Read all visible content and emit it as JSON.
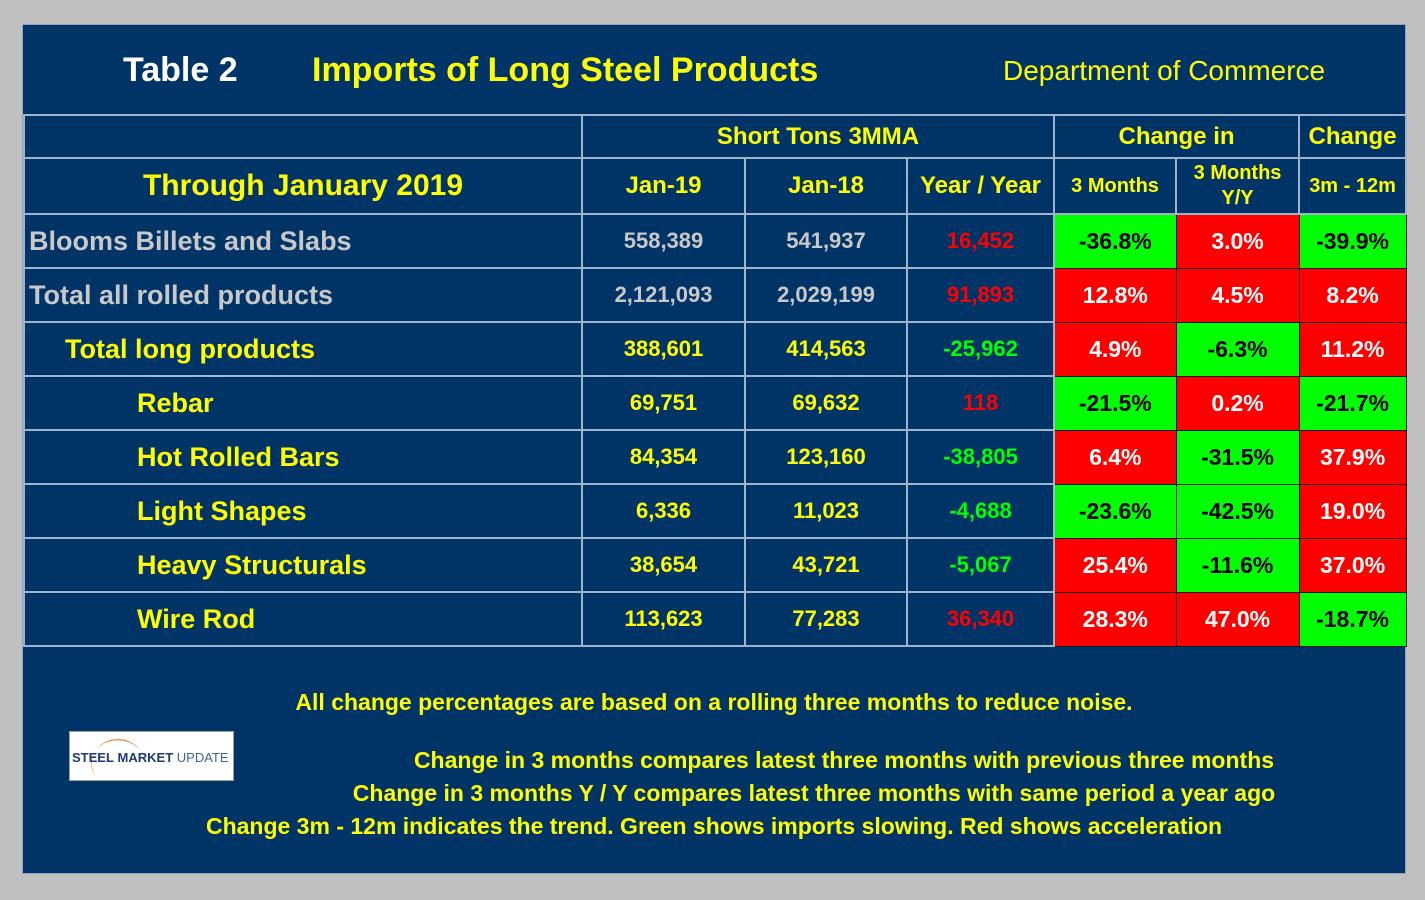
{
  "header": {
    "table_label": "Table 2",
    "title": "Imports of Long Steel Products",
    "source": "Department of Commerce"
  },
  "columns": {
    "group_short_tons": "Short Tons 3MMA",
    "group_change_in": "Change in",
    "group_change": "Change",
    "period": "Through January 2019",
    "jan19": "Jan-19",
    "jan18": "Jan-18",
    "yoy": "Year / Year",
    "three_months": "3 Months",
    "three_months_yy_line1": "3 Months",
    "three_months_yy_line2": "Y/Y",
    "trend": "3m - 12m"
  },
  "rows": [
    {
      "label": "Blooms Billets and Slabs",
      "jan19": "558,389",
      "jan18": "541,937",
      "yoy": "16,452",
      "chg3m": "-36.8%",
      "chg3m_yy": "3.0%",
      "chg3m_12m": "-39.9%"
    },
    {
      "label": "Total all rolled products",
      "jan19": "2,121,093",
      "jan18": "2,029,199",
      "yoy": "91,893",
      "chg3m": "12.8%",
      "chg3m_yy": "4.5%",
      "chg3m_12m": "8.2%"
    },
    {
      "label": "Total long products",
      "jan19": "388,601",
      "jan18": "414,563",
      "yoy": "-25,962",
      "chg3m": "4.9%",
      "chg3m_yy": "-6.3%",
      "chg3m_12m": "11.2%"
    },
    {
      "label": "Rebar",
      "jan19": "69,751",
      "jan18": "69,632",
      "yoy": "118",
      "chg3m": "-21.5%",
      "chg3m_yy": "0.2%",
      "chg3m_12m": "-21.7%"
    },
    {
      "label": "Hot Rolled Bars",
      "jan19": "84,354",
      "jan18": "123,160",
      "yoy": "-38,805",
      "chg3m": "6.4%",
      "chg3m_yy": "-31.5%",
      "chg3m_12m": "37.9%"
    },
    {
      "label": "Light Shapes",
      "jan19": "6,336",
      "jan18": "11,023",
      "yoy": "-4,688",
      "chg3m": "-23.6%",
      "chg3m_yy": "-42.5%",
      "chg3m_12m": "19.0%"
    },
    {
      "label": "Heavy Structurals",
      "jan19": "38,654",
      "jan18": "43,721",
      "yoy": "-5,067",
      "chg3m": "25.4%",
      "chg3m_yy": "-11.6%",
      "chg3m_12m": "37.0%"
    },
    {
      "label": "Wire Rod",
      "jan19": "113,623",
      "jan18": "77,283",
      "yoy": "36,340",
      "chg3m": "28.3%",
      "chg3m_yy": "47.0%",
      "chg3m_12m": "-18.7%"
    }
  ],
  "notes": [
    "All change percentages are based on a rolling three months to reduce noise.",
    "Change in 3 months compares latest three months with previous three months",
    "Change in 3 months  Y / Y compares latest three months with same period a year ago",
    "Change 3m - 12m indicates the trend. Green shows imports slowing. Red shows acceleration"
  ],
  "logo": {
    "word1": "STEEL",
    "word2": "MARKET",
    "word3": "UPDATE"
  },
  "colors": {
    "background_panel": "#003366",
    "increase": "#ff0000",
    "decrease": "#00ff00",
    "heading": "#ffff00"
  }
}
